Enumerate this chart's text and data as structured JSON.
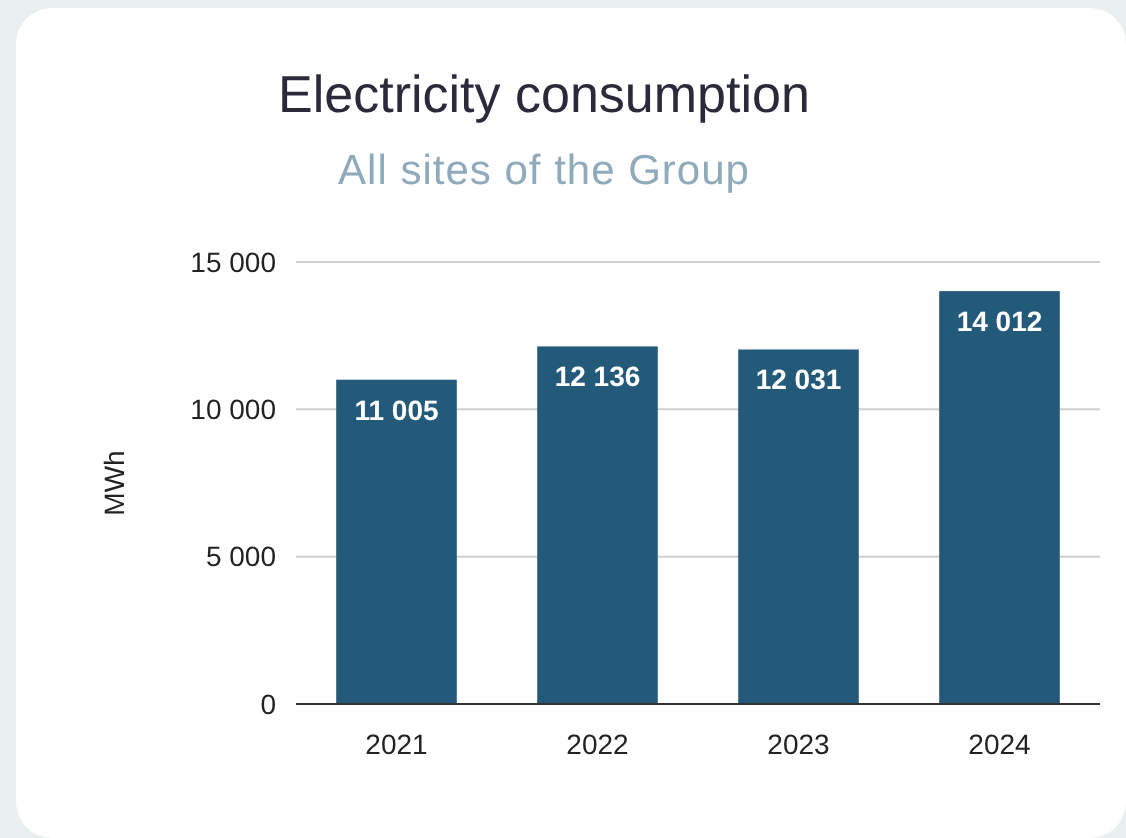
{
  "chart_data": {
    "type": "bar",
    "title": "Electricity consumption",
    "subtitle": "All sites of the Group",
    "ylabel": "MWh",
    "categories": [
      "2021",
      "2022",
      "2023",
      "2024"
    ],
    "values": [
      11005,
      12136,
      12031,
      14012
    ],
    "value_labels": [
      "11 005",
      "12 136",
      "12 031",
      "14 012"
    ],
    "color": "#235a7a",
    "ylim": [
      0,
      15000
    ],
    "yticks": [
      {
        "value": 0,
        "label": "0"
      },
      {
        "value": 5000,
        "label": "5 000"
      },
      {
        "value": 10000,
        "label": "10 000"
      },
      {
        "value": 15000,
        "label": "15 000"
      }
    ],
    "grid": "y"
  }
}
